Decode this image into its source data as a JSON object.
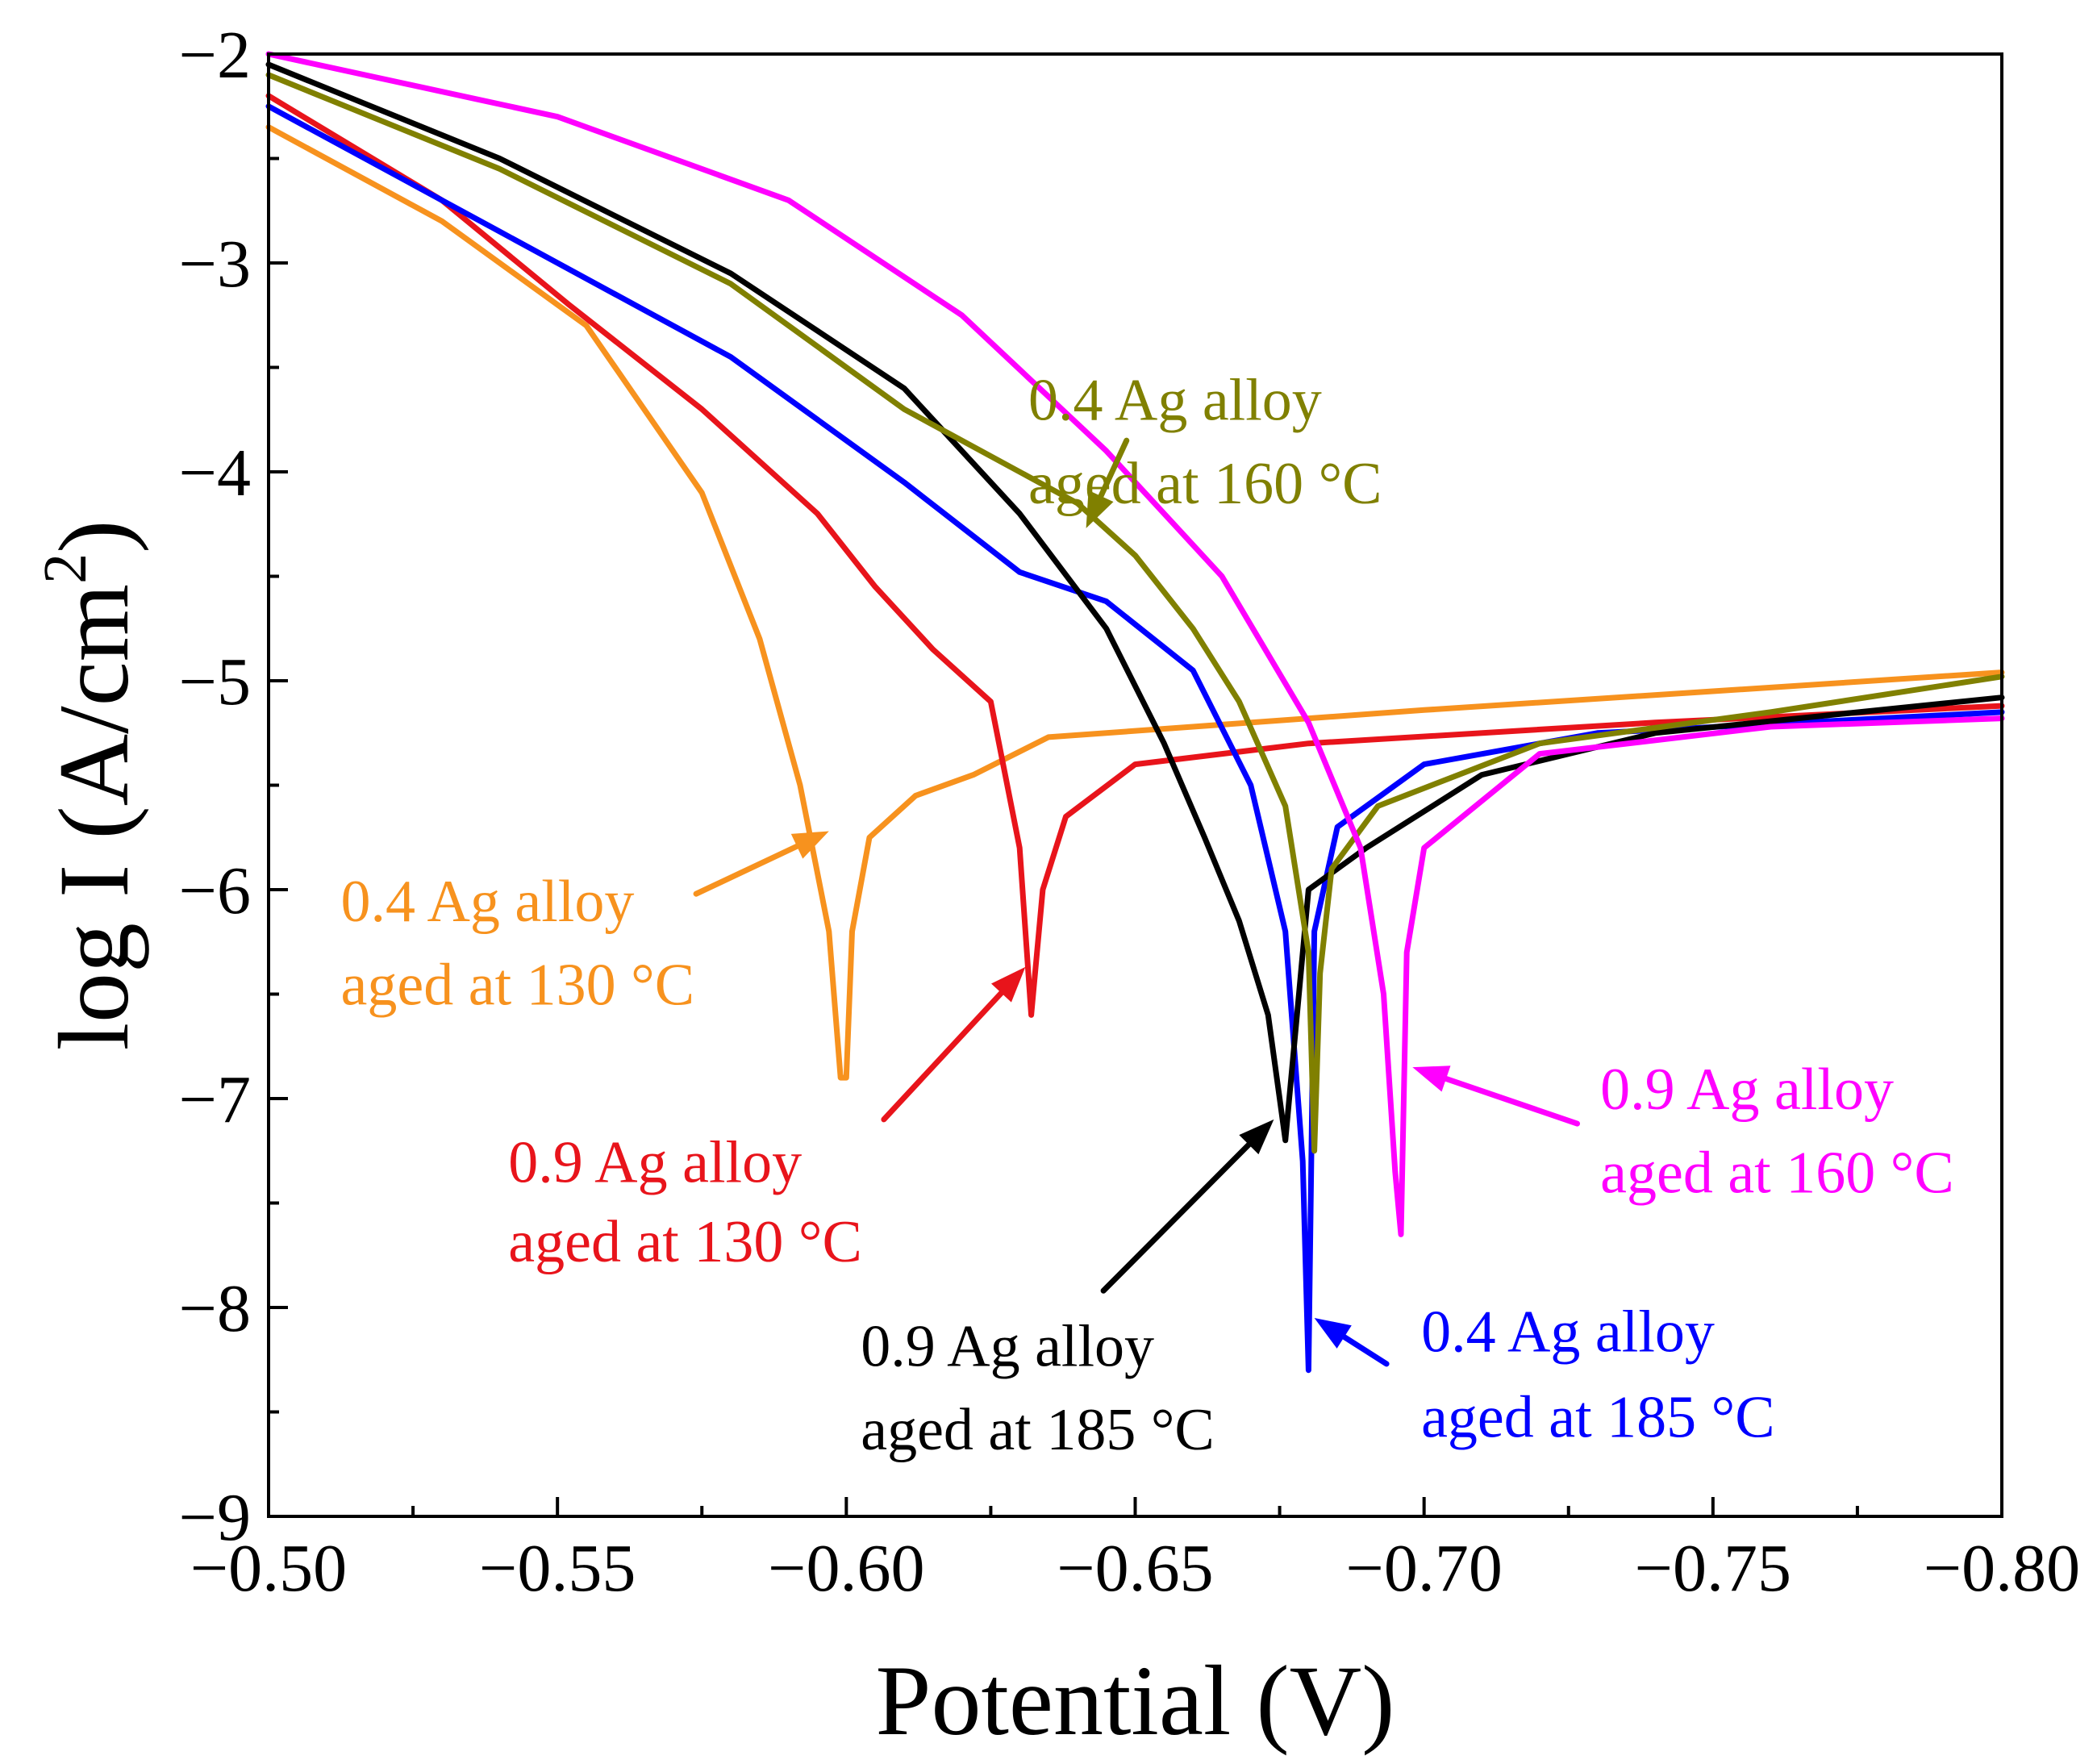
{
  "chart_data": {
    "type": "line",
    "title": "",
    "xlabel": "Potential (V)",
    "ylabel": "log I (A/cm",
    "ylabel_sup": "2",
    "ylabel_close": ")",
    "xlim": [
      -0.5,
      -0.8
    ],
    "ylim": [
      -9,
      -2
    ],
    "x_reversed": true,
    "grid": false,
    "legend": "none",
    "x_ticks": [
      -0.5,
      -0.55,
      -0.6,
      -0.65,
      -0.7,
      -0.75,
      -0.8
    ],
    "x_tick_labels": [
      "−0.50",
      "−0.55",
      "−0.60",
      "−0.65",
      "−0.70",
      "−0.75",
      "−0.80"
    ],
    "y_ticks": [
      -2,
      -3,
      -4,
      -5,
      -6,
      -7,
      -8,
      -9
    ],
    "y_tick_labels": [
      "−2",
      "−3",
      "−4",
      "−5",
      "−6",
      "−7",
      "−8",
      "−9"
    ],
    "series": [
      {
        "color": "#f7921e",
        "x": [
          -0.5,
          -0.53,
          -0.555,
          -0.575,
          -0.585,
          -0.592,
          -0.597,
          -0.599,
          -0.6,
          -0.601,
          -0.604,
          -0.612,
          -0.622,
          -0.635,
          -0.66,
          -0.7,
          -0.75,
          -0.8
        ],
        "y": [
          -2.35,
          -2.8,
          -3.3,
          -4.1,
          -4.8,
          -5.5,
          -6.2,
          -6.9,
          -6.9,
          -6.2,
          -5.75,
          -5.55,
          -5.45,
          -5.27,
          -5.22,
          -5.14,
          -5.05,
          -4.96
        ]
      },
      {
        "color": "#e8141b",
        "x": [
          -0.5,
          -0.53,
          -0.552,
          -0.575,
          -0.595,
          -0.605,
          -0.615,
          -0.625,
          -0.63,
          -0.632,
          -0.634,
          -0.638,
          -0.65,
          -0.68,
          -0.74,
          -0.8
        ],
        "y": [
          -2.2,
          -2.7,
          -3.2,
          -3.7,
          -4.2,
          -4.55,
          -4.85,
          -5.1,
          -5.8,
          -6.6,
          -6.0,
          -5.65,
          -5.4,
          -5.3,
          -5.2,
          -5.12
        ]
      },
      {
        "color": "#0000ff",
        "x": [
          -0.5,
          -0.54,
          -0.58,
          -0.61,
          -0.63,
          -0.645,
          -0.66,
          -0.67,
          -0.676,
          -0.679,
          -0.68,
          -0.681,
          -0.685,
          -0.7,
          -0.73,
          -0.8
        ],
        "y": [
          -2.25,
          -2.85,
          -3.45,
          -4.05,
          -4.48,
          -4.62,
          -4.95,
          -5.5,
          -6.2,
          -7.3,
          -8.3,
          -6.2,
          -5.7,
          -5.4,
          -5.25,
          -5.15
        ]
      },
      {
        "color": "#000000",
        "x": [
          -0.5,
          -0.54,
          -0.58,
          -0.61,
          -0.63,
          -0.645,
          -0.655,
          -0.662,
          -0.668,
          -0.673,
          -0.675,
          -0.676,
          -0.678,
          -0.68,
          -0.69,
          -0.71,
          -0.74,
          -0.8
        ],
        "y": [
          -2.05,
          -2.5,
          -3.05,
          -3.6,
          -4.2,
          -4.75,
          -5.3,
          -5.75,
          -6.15,
          -6.6,
          -7.0,
          -7.2,
          -6.6,
          -6.0,
          -5.8,
          -5.45,
          -5.25,
          -5.08
        ]
      },
      {
        "color": "#808000",
        "x": [
          -0.5,
          -0.54,
          -0.58,
          -0.61,
          -0.64,
          -0.65,
          -0.66,
          -0.668,
          -0.676,
          -0.68,
          -0.681,
          -0.682,
          -0.684,
          -0.692,
          -0.72,
          -0.76,
          -0.8
        ],
        "y": [
          -2.1,
          -2.55,
          -3.1,
          -3.7,
          -4.15,
          -4.4,
          -4.75,
          -5.1,
          -5.6,
          -6.3,
          -7.25,
          -6.4,
          -5.9,
          -5.6,
          -5.3,
          -5.15,
          -4.98
        ]
      },
      {
        "color": "#ff00ff",
        "x": [
          -0.5,
          -0.55,
          -0.59,
          -0.62,
          -0.645,
          -0.665,
          -0.68,
          -0.689,
          -0.693,
          -0.695,
          -0.696,
          -0.697,
          -0.7,
          -0.72,
          -0.76,
          -0.8
        ],
        "y": [
          -2.0,
          -2.3,
          -2.7,
          -3.25,
          -3.9,
          -4.5,
          -5.2,
          -5.8,
          -6.5,
          -7.35,
          -7.65,
          -6.3,
          -5.8,
          -5.35,
          -5.22,
          -5.18
        ]
      }
    ],
    "annotations": [
      {
        "color": "#808000",
        "line1": "0.4 Ag alloy",
        "line2": "aged at 160 °C",
        "text_x": -0.6315,
        "text_y1": -3.75,
        "text_y2": -4.15,
        "arrow_from": [
          -0.6485,
          -3.85
        ],
        "arrow_to": [
          -0.6415,
          -4.27
        ]
      },
      {
        "color": "#f7921e",
        "line1": "0.4 Ag alloy",
        "line2": "aged at 130 °C",
        "text_x": -0.5125,
        "text_y1": -6.15,
        "text_y2": -6.55,
        "arrow_from": [
          -0.574,
          -6.02
        ],
        "arrow_to": [
          -0.597,
          -5.72
        ]
      },
      {
        "color": "#e8141b",
        "line1": "0.9 Ag alloy",
        "line2": "aged at 130 °C",
        "text_x": -0.5415,
        "text_y1": -7.4,
        "text_y2": -7.78,
        "arrow_from": [
          -0.6065,
          -7.1
        ],
        "arrow_to": [
          -0.631,
          -6.37
        ]
      },
      {
        "color": "#000000",
        "line1": "0.9 Ag alloy",
        "line2": "aged at 185 °C",
        "text_x": -0.6025,
        "text_y1": -8.28,
        "text_y2": -8.68,
        "arrow_from": [
          -0.6445,
          -7.92
        ],
        "arrow_to": [
          -0.674,
          -7.1
        ]
      },
      {
        "color": "#0000ff",
        "line1": "0.4 Ag alloy",
        "line2": "aged at 185 °C",
        "text_x": -0.6995,
        "text_y1": -8.21,
        "text_y2": -8.62,
        "arrow_from": [
          -0.6935,
          -8.27
        ],
        "arrow_to": [
          -0.681,
          -8.05
        ]
      },
      {
        "color": "#ff00ff",
        "line1": "0.9 Ag alloy",
        "line2": "aged at 160 °C",
        "text_x": -0.7305,
        "text_y1": -7.05,
        "text_y2": -7.45,
        "arrow_from": [
          -0.7265,
          -7.12
        ],
        "arrow_to": [
          -0.698,
          -6.85
        ]
      }
    ]
  }
}
